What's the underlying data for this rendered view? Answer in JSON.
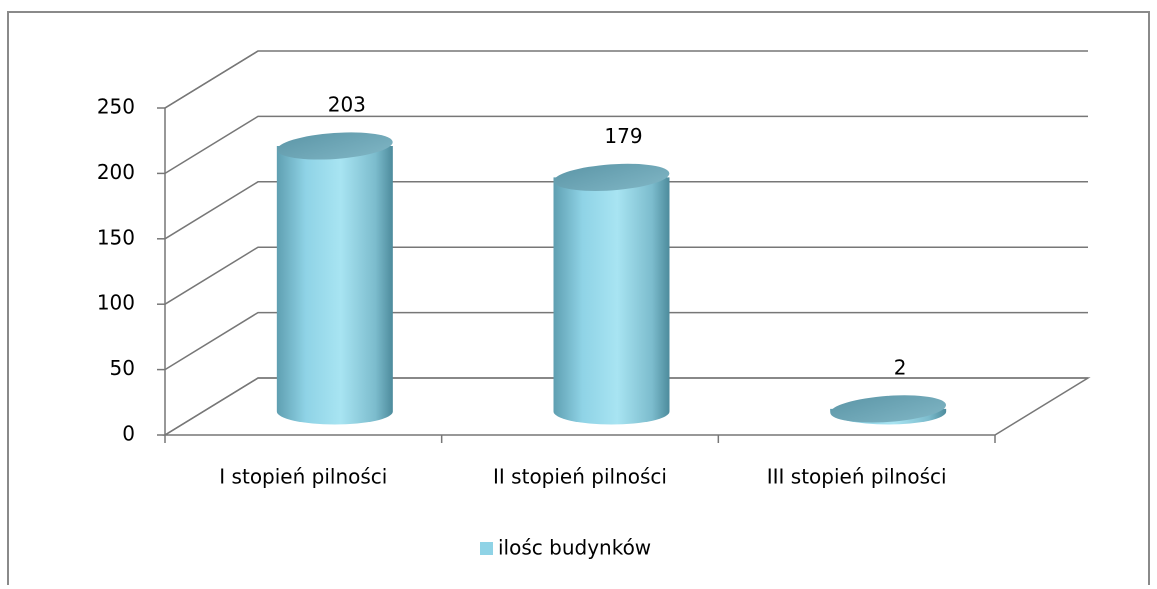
{
  "chart_data": {
    "type": "bar",
    "categories": [
      "I stopień pilności",
      "II stopień pilności",
      "III stopień pilności"
    ],
    "series": [
      {
        "name": "ilośc budynków",
        "color": "#8fd3e6",
        "values": [
          203,
          179,
          2
        ]
      }
    ],
    "ylim": [
      0,
      250
    ],
    "yticks": [
      0,
      50,
      100,
      150,
      200,
      250
    ],
    "grid": true,
    "legend": "bottom"
  }
}
